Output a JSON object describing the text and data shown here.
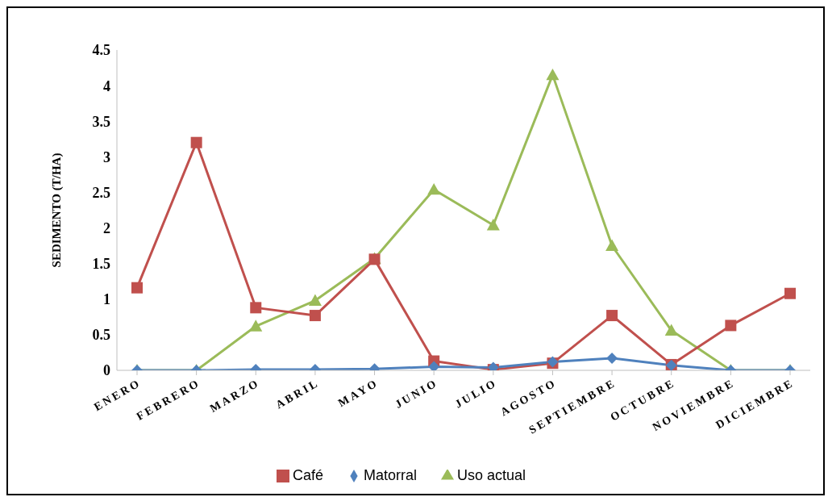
{
  "chart_data": {
    "type": "line",
    "ylabel": "SEDIMENTO (T/HA)",
    "categories": [
      "ENERO",
      "FEBRERO",
      "MARZO",
      "ABRIL",
      "MAYO",
      "JUNIO",
      "JULIO",
      "AGOSTO",
      "SEPTIEMBRE",
      "OCTUBRE",
      "NOVIEMBRE",
      "DICIEMBRE"
    ],
    "series": [
      {
        "name": "Uso actual",
        "color": "#9bbb59",
        "marker": "triangle",
        "values": [
          0,
          0,
          0.62,
          0.98,
          1.57,
          2.54,
          2.04,
          4.15,
          1.75,
          0.56,
          0,
          0
        ]
      },
      {
        "name": "Café",
        "color": "#c0504d",
        "marker": "square",
        "values": [
          1.16,
          3.2,
          0.88,
          0.77,
          1.56,
          0.13,
          0.01,
          0.1,
          0.77,
          0.08,
          0.63,
          1.08
        ]
      },
      {
        "name": "Matorral",
        "color": "#4f81bd",
        "marker": "diamond",
        "values": [
          0,
          0,
          0.01,
          0.01,
          0.02,
          0.05,
          0.04,
          0.12,
          0.17,
          0.07,
          0,
          0
        ]
      }
    ],
    "ylim": [
      0,
      4.5
    ],
    "yticks": [
      0,
      0.5,
      1,
      1.5,
      2,
      2.5,
      3,
      3.5,
      4,
      4.5
    ],
    "grid": false,
    "legend": "bottom"
  }
}
